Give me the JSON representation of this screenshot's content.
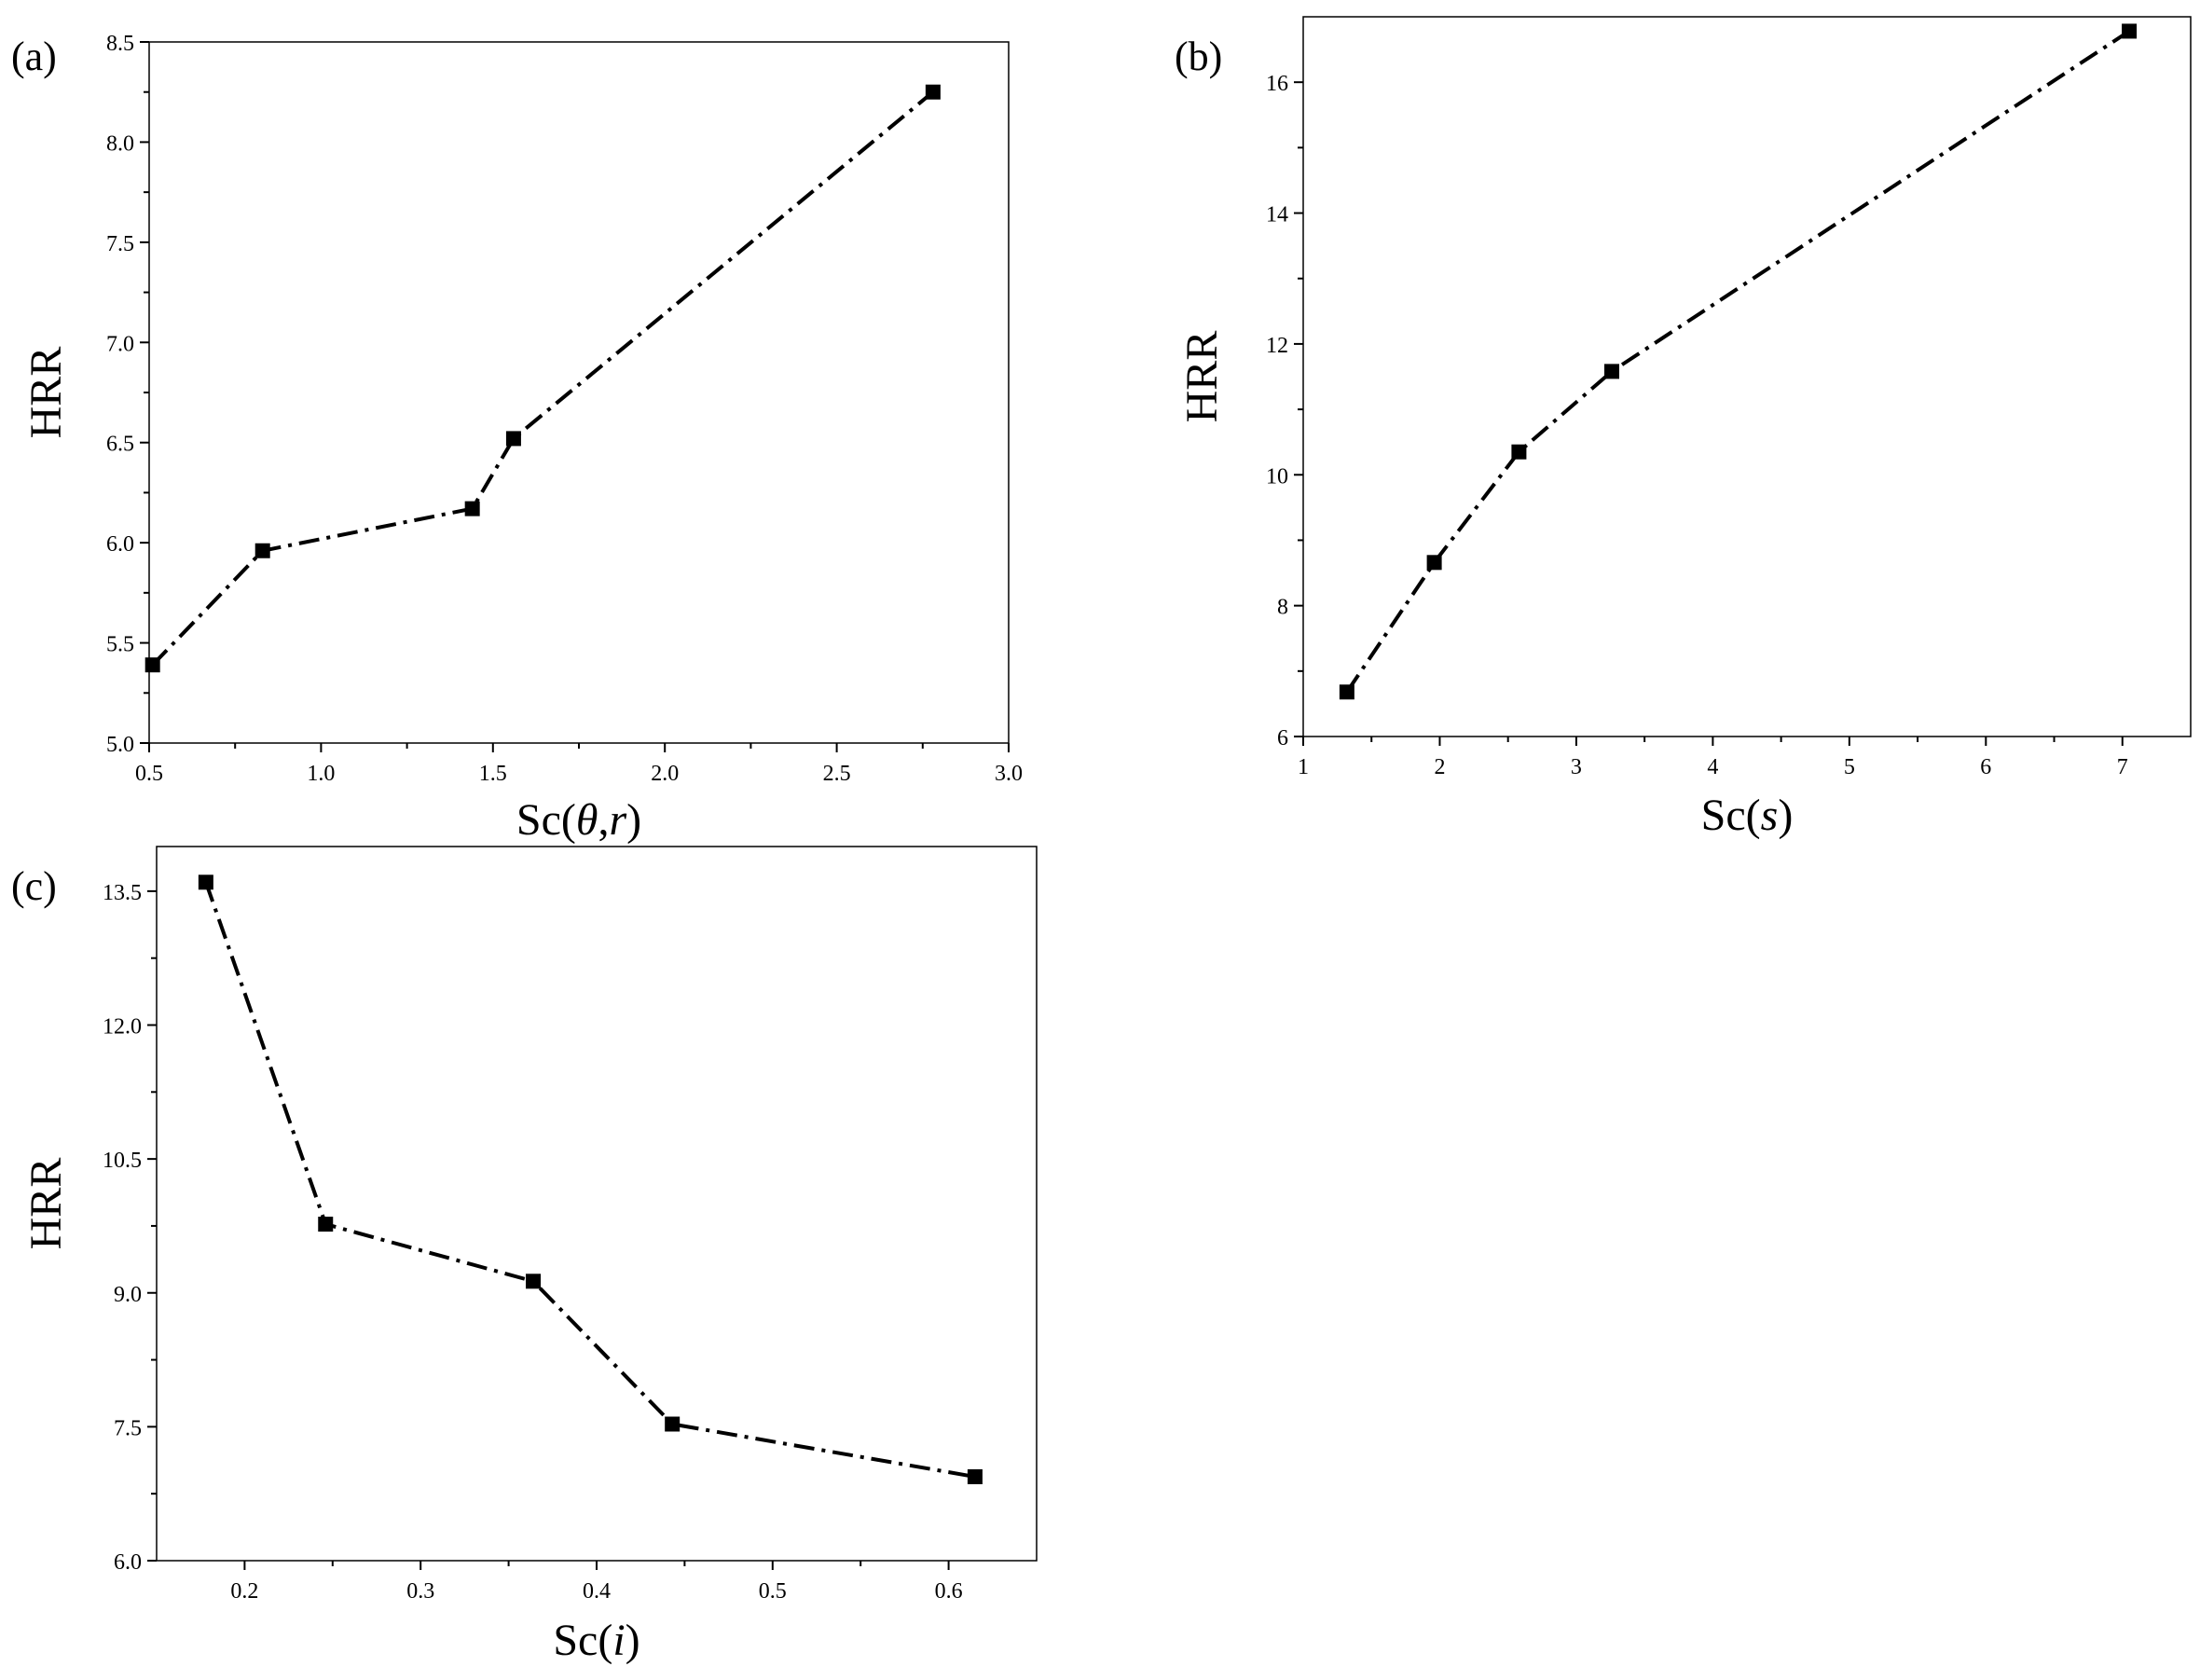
{
  "chart_data": [
    {
      "panel": "(a)",
      "type": "line",
      "xlabel": "Sc(θ,r)",
      "ylabel": "HRR",
      "xlim": [
        0.5,
        3.0
      ],
      "ylim": [
        5.0,
        8.5
      ],
      "xticks": [
        "0.5",
        "1.0",
        "1.5",
        "2.0",
        "2.5",
        "3.0"
      ],
      "yticks": [
        "5.0",
        "5.5",
        "6.0",
        "6.5",
        "7.0",
        "7.5",
        "8.0",
        "8.5"
      ],
      "x": [
        0.51,
        0.83,
        1.44,
        1.56,
        2.78
      ],
      "y": [
        5.39,
        5.96,
        6.17,
        6.52,
        8.25
      ],
      "grid": false
    },
    {
      "panel": "(b)",
      "type": "line",
      "xlabel": "Sc(s)",
      "ylabel": "HRR",
      "xlim": [
        1,
        7.5
      ],
      "ylim": [
        6,
        17
      ],
      "xticks": [
        "1",
        "2",
        "3",
        "4",
        "5",
        "6",
        "7"
      ],
      "yticks": [
        "6",
        "8",
        "10",
        "12",
        "14",
        "16"
      ],
      "x": [
        1.32,
        1.96,
        2.58,
        3.26,
        7.05
      ],
      "y": [
        6.68,
        8.66,
        10.35,
        11.58,
        16.78
      ],
      "grid": false
    },
    {
      "panel": "(c)",
      "type": "line",
      "xlabel": "Sc(i)",
      "ylabel": "HRR",
      "xlim": [
        0.15,
        0.65
      ],
      "ylim": [
        6.0,
        14.0
      ],
      "xticks": [
        "0.2",
        "0.3",
        "0.4",
        "0.5",
        "0.6"
      ],
      "yticks": [
        "6.0",
        "7.5",
        "9.0",
        "10.5",
        "12.0",
        "13.5"
      ],
      "x": [
        0.178,
        0.246,
        0.364,
        0.443,
        0.615
      ],
      "y": [
        13.6,
        9.77,
        9.13,
        7.53,
        6.94
      ],
      "grid": false
    }
  ]
}
